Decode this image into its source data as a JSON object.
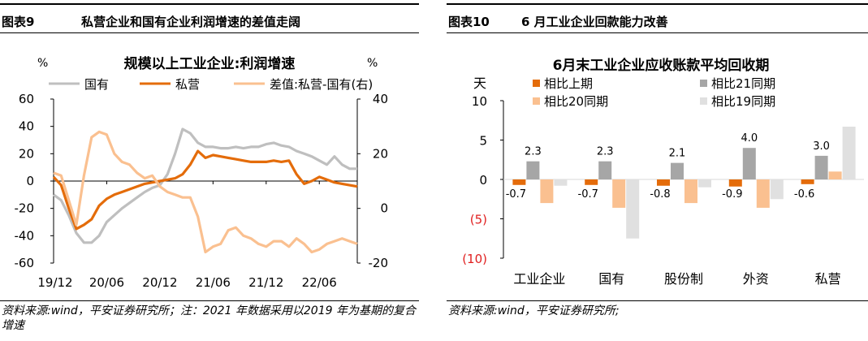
{
  "figures": [
    {
      "number": "图表9",
      "title": "私营企业和国有企业利润增速的差值走阔",
      "source": "资料来源:wind，平安证券研究所；注：2021 年数据采用以2019 年为基期的复合增速"
    },
    {
      "number": "图表10",
      "title": "6 月工业企业回款能力改善",
      "source": "资料来源:wind，平安证券研究所;"
    }
  ],
  "chart_data": [
    {
      "type": "line",
      "title": "规模以上工业企业:利润增速",
      "left_unit": "%",
      "right_unit": "%",
      "x_tick_labels": [
        "19/12",
        "20/06",
        "20/12",
        "21/06",
        "21/12",
        "22/06"
      ],
      "ylim_left": [
        -60,
        60
      ],
      "yticks_left": [
        "60",
        "40",
        "20",
        "0",
        "-20",
        "-40",
        "-60"
      ],
      "ylim_right": [
        -20,
        40
      ],
      "yticks_right": [
        "40",
        "20",
        "0",
        "-20"
      ],
      "legend": "top",
      "series": [
        {
          "name": "国有",
          "axis": "left",
          "color": "#bfbfbf",
          "values": [
            -10,
            -14,
            -25,
            -38,
            -45,
            -45,
            -40,
            -30,
            -25,
            -20,
            -16,
            -12,
            -8,
            -5,
            -3,
            5,
            20,
            38,
            35,
            28,
            25,
            25,
            24,
            24,
            25,
            24,
            25,
            25,
            27,
            28,
            26,
            25,
            22,
            20,
            18,
            15,
            12,
            18,
            12,
            9,
            9
          ]
        },
        {
          "name": "私营",
          "axis": "left",
          "color": "#e46c0a",
          "values": [
            3,
            -3,
            -20,
            -35,
            -32,
            -28,
            -18,
            -13,
            -10,
            -8,
            -6,
            -4,
            -2,
            -1,
            0,
            1,
            2,
            5,
            12,
            22,
            17,
            19,
            18,
            17,
            16,
            15,
            14,
            14,
            14,
            15,
            14,
            15,
            5,
            -2,
            0,
            3,
            1,
            -1,
            -2,
            -3,
            -4
          ]
        },
        {
          "name": "差值:私营-国有(右)",
          "axis": "right",
          "color": "#fac090",
          "values": [
            13,
            12,
            3,
            -6,
            12,
            26,
            28,
            27,
            20,
            17,
            16,
            13,
            11,
            12,
            8,
            6,
            5,
            4,
            4,
            -3,
            -16,
            -14,
            -13,
            -8,
            -7,
            -10,
            -11,
            -13,
            -14,
            -12,
            -12,
            -14,
            -11,
            -13,
            -16,
            -15,
            -13,
            -12,
            -11,
            -12,
            -13
          ]
        }
      ]
    },
    {
      "type": "bar",
      "title": "6月末工业企业应收账款平均回收期",
      "ylabel": "天",
      "ylim": [
        -10,
        10
      ],
      "yticks": [
        "10",
        "5",
        "0",
        "(5)",
        "(10)"
      ],
      "categories": [
        "工业企业",
        "国有",
        "股份制",
        "外资",
        "私营"
      ],
      "legend": "top",
      "series": [
        {
          "name": "相比上期",
          "color": "#e46c0a",
          "values": [
            -0.7,
            -0.7,
            -0.8,
            -0.9,
            -0.6
          ]
        },
        {
          "name": "相比21同期",
          "color": "#a6a6a6",
          "values": [
            2.3,
            2.3,
            2.1,
            4.0,
            3.0
          ]
        },
        {
          "name": "相比20同期",
          "color": "#fac090",
          "values": [
            -3.0,
            -3.6,
            -3.0,
            -3.6,
            1.0
          ]
        },
        {
          "name": "相比19同期",
          "color": "#e0e0e0",
          "values": [
            -0.8,
            -7.5,
            -1.0,
            -2.5,
            6.7
          ]
        }
      ],
      "data_labels": {
        "相比上期": [
          "-0.7",
          "-0.7",
          "-0.8",
          "-0.9",
          "-0.6"
        ],
        "相比21同期": [
          "2.3",
          "2.3",
          "2.1",
          "4.0",
          "3.0"
        ]
      }
    }
  ]
}
